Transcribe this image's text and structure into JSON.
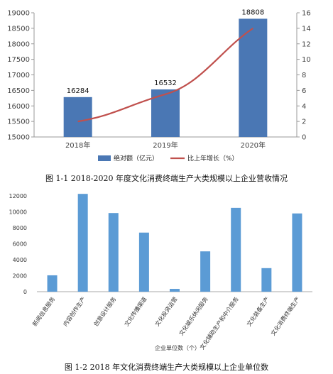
{
  "chart_data": [
    {
      "type": "bar",
      "categories": [
        "2018年",
        "2019年",
        "2020年"
      ],
      "series": [
        {
          "name": "绝对额（亿元）",
          "type": "bar",
          "axis": "left",
          "values": [
            16284,
            16532,
            18808
          ],
          "color": "#4a77b4"
        },
        {
          "name": "比上年增长（%）",
          "type": "line",
          "axis": "right",
          "values": [
            2.0,
            5.5,
            14.0
          ],
          "color": "#c0504d"
        }
      ],
      "data_labels": [
        "16284",
        "16532",
        "18808"
      ],
      "ylim": [
        15000,
        19000
      ],
      "yticks": [
        15000,
        15500,
        16000,
        16500,
        17000,
        17500,
        18000,
        18500,
        19000
      ],
      "y2lim": [
        0,
        16
      ],
      "y2ticks": [
        0,
        2,
        4,
        6,
        8,
        10,
        12,
        14,
        16
      ],
      "legend_position": "bottom",
      "caption": "图 1-1 2018-2020 年度文化消费终端生产大类规模以上企业营收情况"
    },
    {
      "type": "bar",
      "categories": [
        "新闻信息服务",
        "内容创作生产",
        "创意设计服务",
        "文化传播渠道",
        "文化投资运营",
        "文化娱乐休闲服务",
        "文化辅助生产和中介服务",
        "文化装备生产",
        "文化消费终端生产"
      ],
      "series": [
        {
          "name": "企业单位数（个）",
          "values": [
            2050,
            12250,
            9850,
            7400,
            350,
            5050,
            10500,
            2950,
            9800
          ],
          "color": "#5b9bd5"
        }
      ],
      "ylim": [
        0,
        12000
      ],
      "yticks": [
        0,
        2000,
        4000,
        6000,
        8000,
        10000,
        12000
      ],
      "xlabel": "企业单位数（个）",
      "caption": "图 1-2 2018 年文化消费终端生产大类规模以上企业单位数"
    }
  ]
}
